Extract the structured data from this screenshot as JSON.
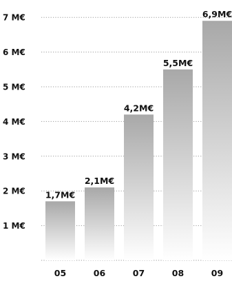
{
  "chart_data": {
    "type": "bar",
    "categories": [
      "05",
      "06",
      "07",
      "08",
      "09"
    ],
    "values": [
      1.7,
      2.1,
      4.2,
      5.5,
      6.9
    ],
    "data_labels": [
      "1,7M€",
      "2,1M€",
      "4,2M€",
      "5,5M€",
      "6,9M€"
    ],
    "y_ticks": [
      1,
      2,
      3,
      4,
      5,
      6,
      7
    ],
    "y_tick_labels": [
      "1 M€",
      "2 M€",
      "3 M€",
      "4 M€",
      "5 M€",
      "6 M€",
      "7 M€"
    ],
    "ylim": [
      0,
      7
    ],
    "grid": "horizontal-dotted",
    "title": "",
    "xlabel": "",
    "ylabel": "",
    "colors": {
      "bar_top": "#a8a8a8",
      "bar_bottom": "#ffffff",
      "grid": "#9a9a9a",
      "text": "#111111"
    }
  }
}
